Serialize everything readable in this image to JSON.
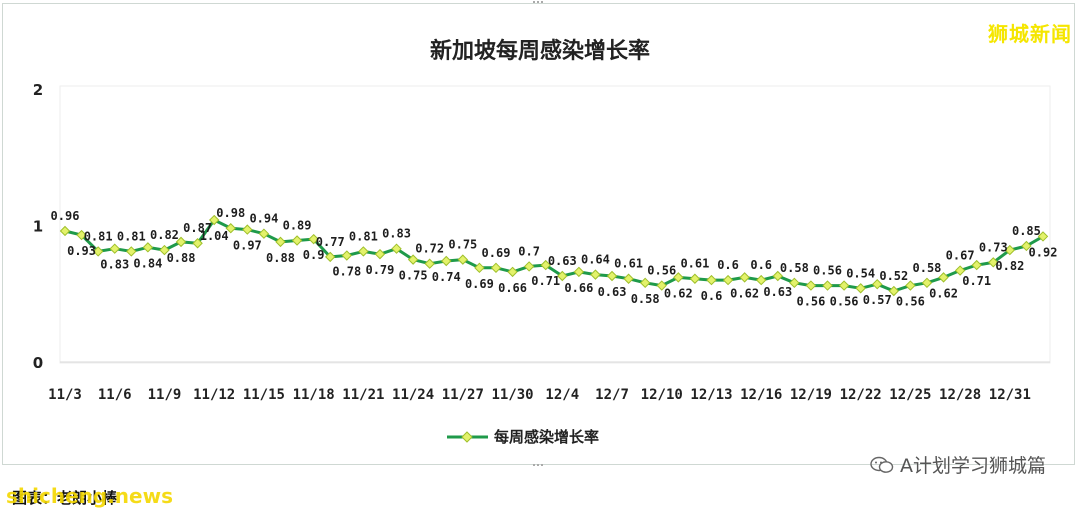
{
  "brand": "狮城新闻",
  "source_note": "图表：老朗小棒",
  "watermark_left": "shicheng.news",
  "watermark_right": "A计划学习狮城篇",
  "colors": {
    "line": "#1f9a4a",
    "marker": "#e3f26b",
    "marker_edge": "#9fbf2a",
    "grid": "#d9d9d9"
  },
  "chart_data": {
    "type": "line",
    "title": "新加坡每周感染增长率",
    "xlabel": "",
    "ylabel": "",
    "ylim": [
      0,
      2
    ],
    "yticks": [
      "0",
      "1",
      "2"
    ],
    "grid": false,
    "legend": "bottom",
    "x_ticks": [
      "11/3",
      "11/6",
      "11/9",
      "11/12",
      "11/15",
      "11/18",
      "11/21",
      "11/24",
      "11/27",
      "11/30",
      "12/4",
      "12/7",
      "12/10",
      "12/13",
      "12/16",
      "12/19",
      "12/22",
      "12/25",
      "12/28",
      "12/31"
    ],
    "series": [
      {
        "name": "每周感染增长率",
        "values": [
          0.96,
          0.93,
          0.81,
          0.83,
          0.81,
          0.84,
          0.82,
          0.88,
          0.87,
          1.04,
          0.98,
          0.97,
          0.94,
          0.88,
          0.89,
          0.9,
          0.77,
          0.78,
          0.81,
          0.79,
          0.83,
          0.75,
          0.72,
          0.74,
          0.75,
          0.69,
          0.69,
          0.66,
          0.7,
          0.71,
          0.63,
          0.66,
          0.64,
          0.63,
          0.61,
          0.58,
          0.56,
          0.62,
          0.61,
          0.6,
          0.6,
          0.62,
          0.6,
          0.63,
          0.58,
          0.56,
          0.56,
          0.56,
          0.54,
          0.57,
          0.52,
          0.56,
          0.58,
          0.62,
          0.67,
          0.71,
          0.73,
          0.82,
          0.85,
          0.92
        ]
      }
    ]
  }
}
